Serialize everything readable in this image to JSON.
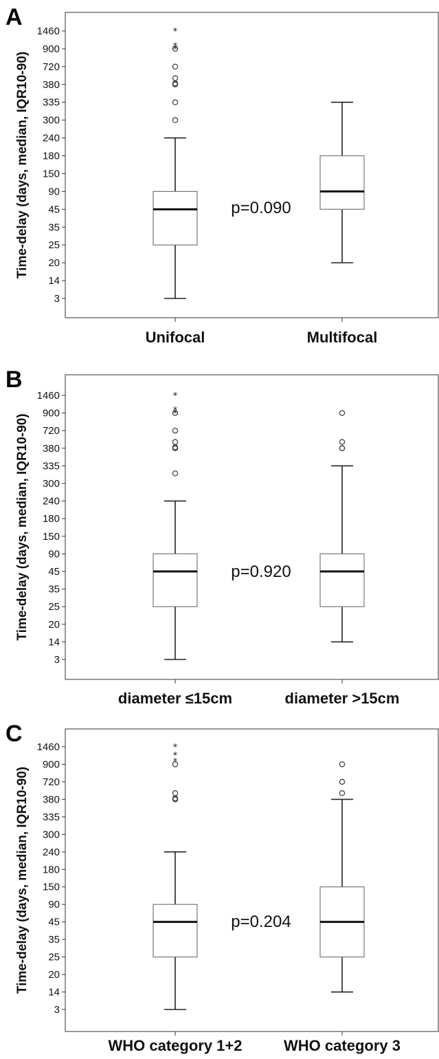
{
  "chart_data": [
    {
      "type": "box",
      "panel_label": "A",
      "ylabel": "Time-delay (days, median, IQR10-90)",
      "y_ticks": [
        "3",
        "14",
        "20",
        "25",
        "35",
        "45",
        "90",
        "150",
        "180",
        "240",
        "300",
        "335",
        "380",
        "720",
        "900",
        "1460"
      ],
      "p_value": "p=0.090",
      "groups": [
        {
          "category": "Unifocal",
          "whisker_low": "3",
          "q1": "25",
          "median": "45",
          "q3": "90",
          "whisker_high": "240",
          "outliers": [
            "300",
            "335",
            "380",
            "380",
            "400",
            "500",
            "720",
            "900"
          ],
          "extremes": [
            "900",
            "1000",
            "1460"
          ]
        },
        {
          "category": "Multifocal",
          "whisker_low": "20",
          "q1": "45",
          "median": "90",
          "q3": "180",
          "whisker_high": "335",
          "outliers": [],
          "extremes": []
        }
      ]
    },
    {
      "type": "box",
      "panel_label": "B",
      "ylabel": "Time-delay (days, median, IQR10-90)",
      "y_ticks": [
        "3",
        "14",
        "20",
        "25",
        "35",
        "45",
        "90",
        "150",
        "180",
        "240",
        "300",
        "335",
        "380",
        "720",
        "900",
        "1460"
      ],
      "p_value": "p=0.920",
      "groups": [
        {
          "category": "diameter ≤15cm",
          "whisker_low": "3",
          "q1": "25",
          "median": "45",
          "q3": "90",
          "whisker_high": "240",
          "outliers": [
            "320",
            "380",
            "380",
            "400",
            "500",
            "720",
            "900"
          ],
          "extremes": [
            "900",
            "1000",
            "1460"
          ]
        },
        {
          "category": "diameter >15cm",
          "whisker_low": "14",
          "q1": "25",
          "median": "45",
          "q3": "90",
          "whisker_high": "335",
          "outliers": [
            "380",
            "380",
            "500",
            "900"
          ],
          "extremes": []
        }
      ]
    },
    {
      "type": "box",
      "panel_label": "C",
      "ylabel": "Time-delay (days, median, IQR10-90)",
      "y_ticks": [
        "3",
        "14",
        "20",
        "25",
        "35",
        "45",
        "90",
        "150",
        "180",
        "240",
        "300",
        "335",
        "380",
        "720",
        "900",
        "1460"
      ],
      "p_value": "p=0.204",
      "groups": [
        {
          "category": "WHO category 1+2",
          "whisker_low": "3",
          "q1": "25",
          "median": "45",
          "q3": "90",
          "whisker_high": "240",
          "outliers": [
            "380",
            "380",
            "400",
            "500",
            "900"
          ],
          "extremes": [
            "1000",
            "1200",
            "1460"
          ]
        },
        {
          "category": "WHO category 3",
          "whisker_low": "14",
          "q1": "25",
          "median": "45",
          "q3": "150",
          "whisker_high": "380",
          "outliers": [
            "500",
            "720",
            "900"
          ],
          "extremes": []
        }
      ]
    }
  ]
}
